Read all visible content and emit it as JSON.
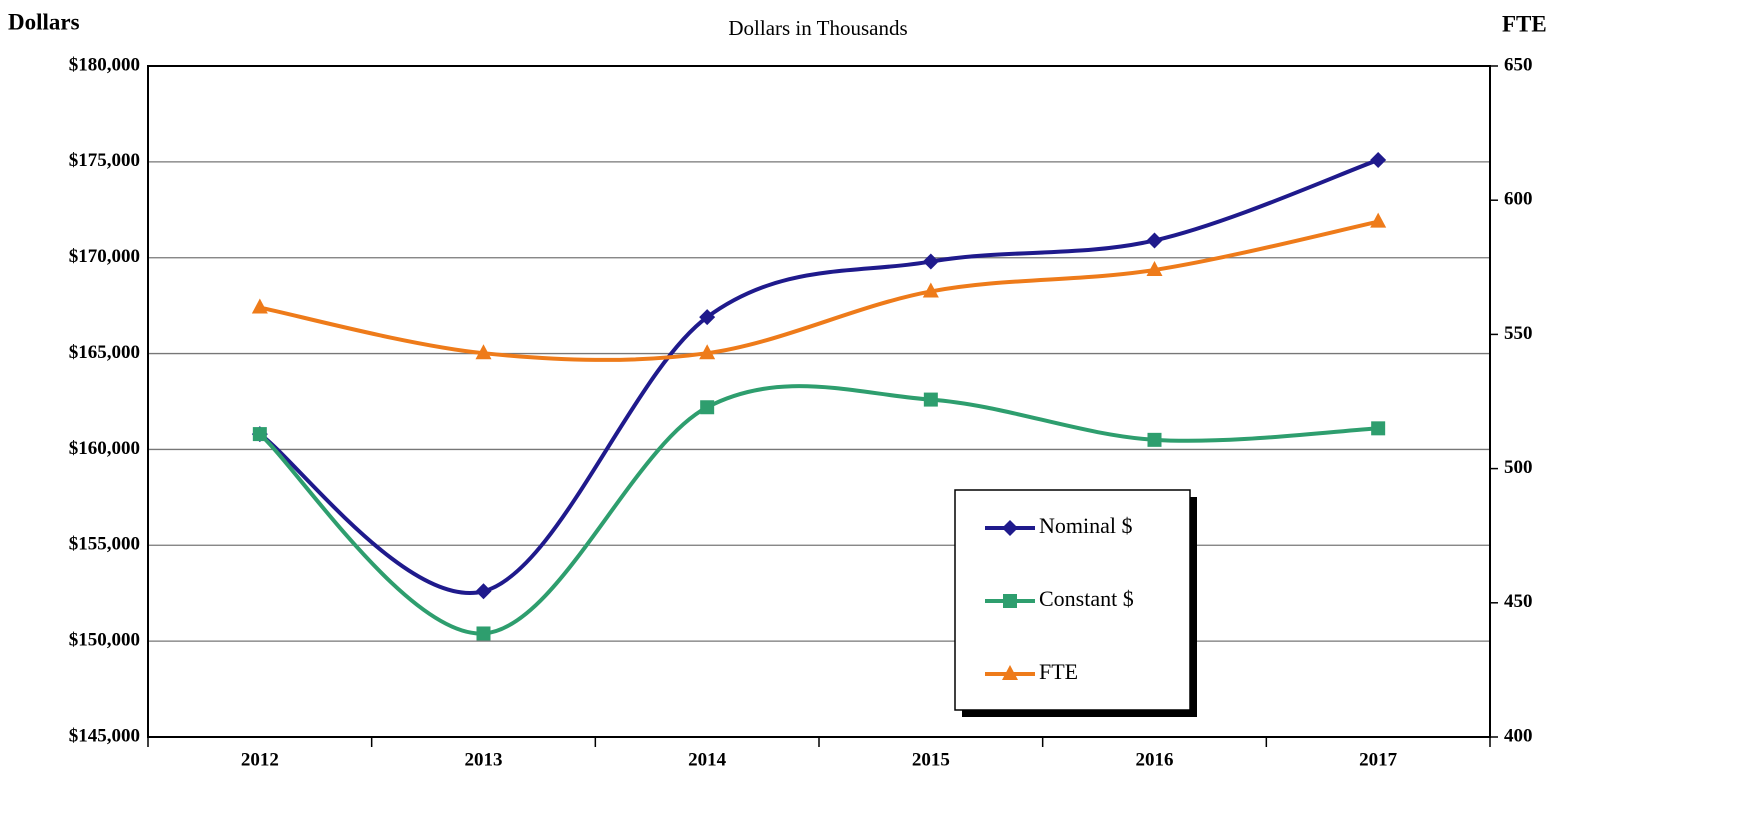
{
  "chart_data": {
    "type": "line",
    "subtitle": "Dollars in Thousands",
    "y_label": "Dollars",
    "y2_label": "FTE",
    "categories": [
      "2012",
      "2013",
      "2014",
      "2015",
      "2016",
      "2017"
    ],
    "series": [
      {
        "name": "Nominal $",
        "color": "#1f1a8c",
        "marker": "diamond",
        "values": [
          160800,
          152600,
          166900,
          169800,
          170900,
          175100
        ]
      },
      {
        "name": "Constant $",
        "color": "#2e9e6e",
        "marker": "square",
        "values": [
          160800,
          150400,
          162200,
          162600,
          160500,
          161100
        ]
      },
      {
        "name": "FTE",
        "color": "#ee7b1a",
        "marker": "triangle",
        "axis": "y2",
        "values": [
          560,
          543,
          543,
          566,
          574,
          592
        ]
      }
    ],
    "ylim": [
      145000,
      180000
    ],
    "yticks": [
      {
        "value": 145000,
        "label": "$145,000"
      },
      {
        "value": 150000,
        "label": "$150,000"
      },
      {
        "value": 155000,
        "label": "$155,000"
      },
      {
        "value": 160000,
        "label": "$160,000"
      },
      {
        "value": 165000,
        "label": "$165,000"
      },
      {
        "value": 170000,
        "label": "$170,000"
      },
      {
        "value": 175000,
        "label": "$175,000"
      },
      {
        "value": 180000,
        "label": "$180,000"
      }
    ],
    "y2lim": [
      400,
      650
    ],
    "y2ticks": [
      400,
      450,
      500,
      550,
      600,
      650
    ],
    "grid": true,
    "smooth": true,
    "legend": "lower right"
  }
}
